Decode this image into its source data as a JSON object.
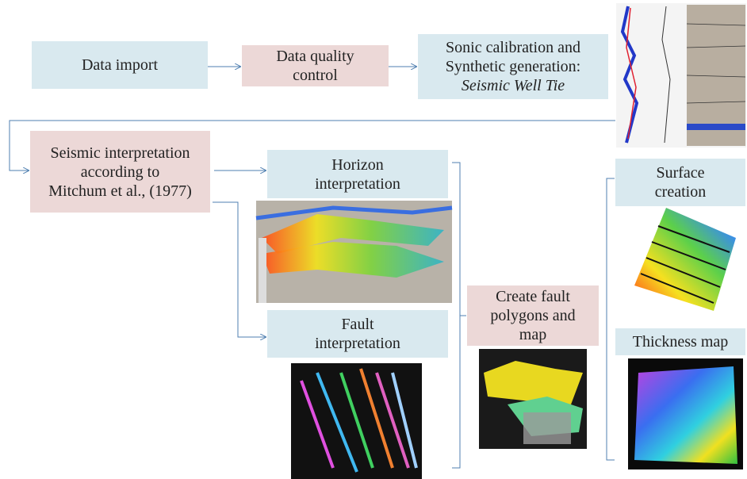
{
  "nodes": [
    {
      "lines": [
        "Data import"
      ]
    },
    {
      "lines": [
        "Data quality",
        "control"
      ]
    },
    {
      "lines": [
        "Sonic calibration and",
        "Synthetic generation:"
      ],
      "emphasis": "Seismic Well Tie"
    },
    {
      "lines": [
        "Seismic interpretation",
        "according to",
        "Mitchum et al., (1977)"
      ]
    },
    {
      "lines": [
        "Horizon",
        "interpretation"
      ]
    },
    {
      "lines": [
        "Fault",
        "interpretation"
      ]
    },
    {
      "lines": [
        "Create fault",
        "polygons and",
        "map"
      ]
    },
    {
      "lines": [
        "Surface",
        "creation"
      ]
    },
    {
      "lines": [
        "Thickness map"
      ]
    }
  ]
}
